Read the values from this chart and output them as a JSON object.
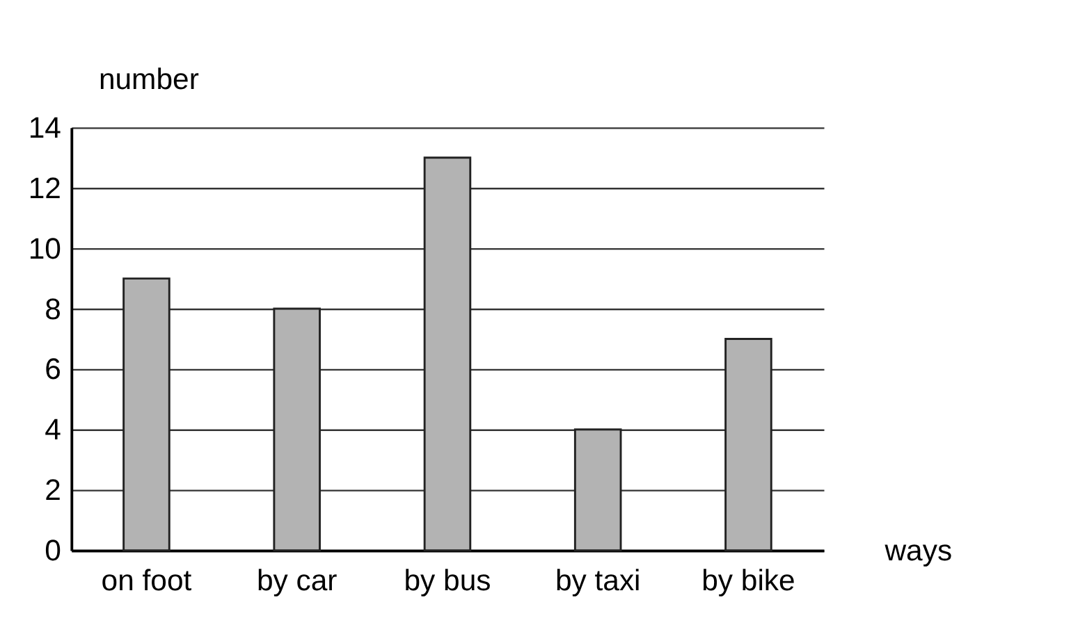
{
  "chart_data": {
    "type": "bar",
    "xlabel": "ways",
    "ylabel": "number",
    "categories": [
      "on foot",
      "by car",
      "by bus",
      "by taxi",
      "by bike"
    ],
    "values": [
      9,
      8,
      13,
      4,
      7
    ],
    "color": "#b3b3b3",
    "ylim": [
      0,
      14
    ],
    "yticks": [
      0,
      2,
      4,
      6,
      8,
      10,
      12,
      14
    ],
    "grid": "y"
  }
}
